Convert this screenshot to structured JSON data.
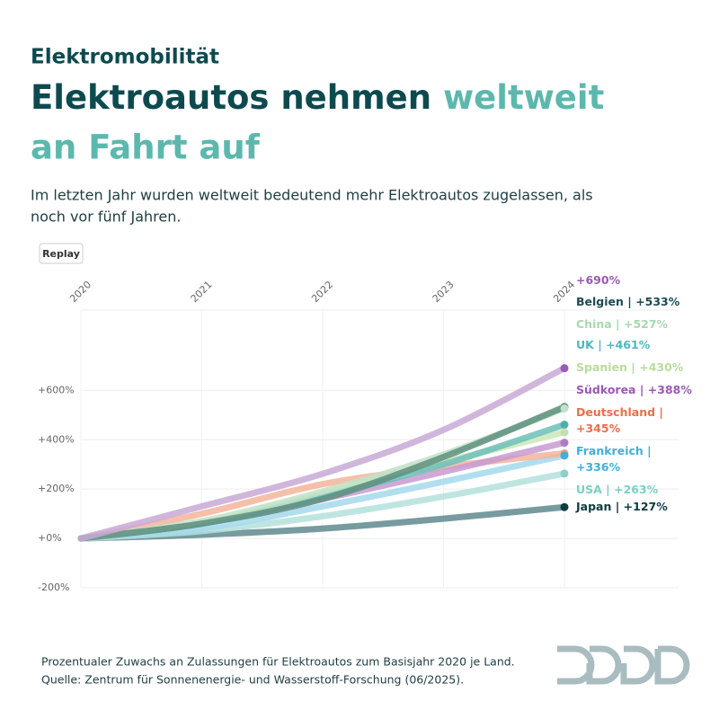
{
  "chart_data": {
    "type": "line",
    "kicker": "Elektromobilität",
    "title": [
      "Elektroautos nehmen ",
      "weltweit",
      "an Fahrt auf"
    ],
    "subtitle": [
      "Im letzten Jahr wurden weltweit bedeutend mehr Elektroautos zugelassen, als",
      "noch vor fünf Jahren."
    ],
    "button": "Replay",
    "footnote": "Prozentualer Zuwachs an Zulassungen für Elektroautos zum Basisjahr 2020 je Land.",
    "source": "Quelle: Zentrum für Sonnenenergie- und Wasserstoff-Forschung (06/2025).",
    "categories": [
      "2020",
      "2021",
      "2022",
      "2023",
      "2024"
    ],
    "ylim": [
      -200,
      900
    ],
    "yticks": [
      {
        "value": -200,
        "label": "-200%"
      },
      {
        "value": 0,
        "label": "+0%"
      },
      {
        "value": 200,
        "label": "+200%"
      },
      {
        "value": 400,
        "label": "+400%"
      },
      {
        "value": 600,
        "label": "+600%"
      }
    ],
    "grid": true,
    "separator": " | ",
    "series": [
      {
        "color": "#c9a9d6",
        "point_color": "#9b59b6",
        "label_color": "#9b59b6",
        "values": [
          0,
          130,
          262,
          440,
          690
        ],
        "value_labels": [
          null,
          null,
          null,
          null,
          "+690%"
        ]
      },
      {
        "name": "Belgien",
        "color": "#5f8f80",
        "point_color": "#5f8f80",
        "label_color": "#1d4a52",
        "values": [
          0,
          60,
          160,
          330,
          533
        ],
        "value_labels": [
          null,
          null,
          null,
          null,
          "+533%"
        ]
      },
      {
        "name": "China",
        "color": "#c0e2c6",
        "point_color": "#c0e2c6",
        "label_color": "#a8d8b0",
        "values": [
          0,
          70,
          190,
          340,
          527
        ],
        "value_labels": [
          null,
          null,
          null,
          null,
          "+527%"
        ]
      },
      {
        "name": "UK",
        "color": "#6cc0b8",
        "point_color": "#4db0a8",
        "label_color": "#4db8c0",
        "values": [
          0,
          60,
          170,
          300,
          461
        ],
        "value_labels": [
          null,
          null,
          null,
          null,
          "+461%"
        ]
      },
      {
        "name": "Spanien",
        "color": "#cde6b8",
        "point_color": "#c5e0b0",
        "label_color": "#b8dc9c",
        "values": [
          0,
          60,
          180,
          310,
          430
        ],
        "value_labels": [
          null,
          null,
          null,
          null,
          "+430%"
        ]
      },
      {
        "name": "Südkorea",
        "color": "#c89ad2",
        "point_color": "#b07cc0",
        "label_color": "#9b59b6",
        "values": [
          0,
          60,
          160,
          270,
          388
        ],
        "value_labels": [
          null,
          null,
          null,
          null,
          "+388%"
        ]
      },
      {
        "name": "Deutschland",
        "color": "#f3b49a",
        "point_color": "#f0a080",
        "label_color": "#e8704a",
        "values": [
          0,
          100,
          220,
          290,
          345
        ],
        "value_labels": [
          null,
          null,
          null,
          null,
          "+345%"
        ]
      },
      {
        "name": "Frankreich",
        "color": "#a4d9ec",
        "point_color": "#40b0d8",
        "label_color": "#40b0d8",
        "values": [
          0,
          40,
          130,
          230,
          336
        ],
        "value_labels": [
          null,
          null,
          null,
          null,
          "+336%"
        ]
      },
      {
        "name": "USA",
        "color": "#b4e0dc",
        "point_color": "#8ed0c8",
        "label_color": "#7ccfc5",
        "values": [
          0,
          30,
          90,
          170,
          263
        ],
        "value_labels": [
          null,
          null,
          null,
          null,
          "+263%"
        ]
      },
      {
        "name": "Japan",
        "color": "#5f8a8e",
        "point_color": "#0d3b40",
        "label_color": "#0d3b40",
        "values": [
          0,
          15,
          40,
          80,
          127
        ],
        "value_labels": [
          null,
          null,
          null,
          null,
          "+127%"
        ]
      }
    ]
  }
}
